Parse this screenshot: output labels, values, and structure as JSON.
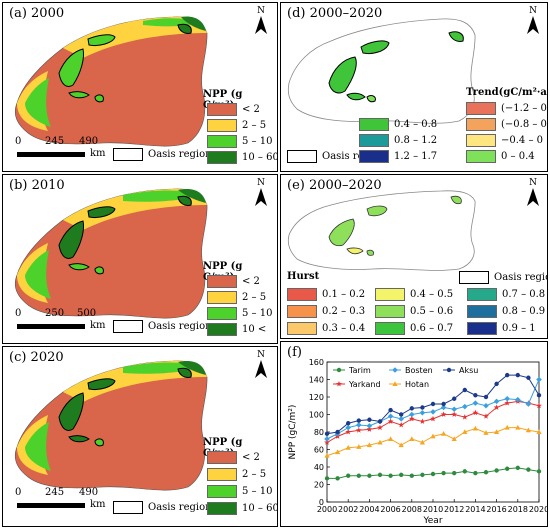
{
  "panel_a": {
    "title": "(a) 2000",
    "north": "N",
    "legend_title": "NPP (g C/m²)",
    "legend": [
      {
        "label": "< 2",
        "color": "#d9654b"
      },
      {
        "label": "2 – 5",
        "color": "#ffd23f"
      },
      {
        "label": "5 – 10",
        "color": "#4cd22a"
      },
      {
        "label": "10 – 60",
        "color": "#1e7b1e"
      }
    ],
    "oasis_label": "Oasis region",
    "scale_ticks": [
      "0",
      "245",
      "490"
    ],
    "scale_unit": "km"
  },
  "panel_b": {
    "title": "(b) 2010",
    "north": "N",
    "legend_title": "NPP (g C/m²)",
    "legend": [
      {
        "label": "< 2",
        "color": "#d9654b"
      },
      {
        "label": "2 – 5",
        "color": "#ffd23f"
      },
      {
        "label": "5 – 10",
        "color": "#4cd22a"
      },
      {
        "label": "10 <",
        "color": "#1e7b1e"
      }
    ],
    "oasis_label": "Oasis region",
    "scale_ticks": [
      "0",
      "250",
      "500"
    ],
    "scale_unit": "km"
  },
  "panel_c": {
    "title": "(c) 2020",
    "north": "N",
    "legend_title": "NPP (g C/m²)",
    "legend": [
      {
        "label": "< 2",
        "color": "#d9654b"
      },
      {
        "label": "2 – 5",
        "color": "#ffd23f"
      },
      {
        "label": "5 – 10",
        "color": "#4cd22a"
      },
      {
        "label": "10 – 60",
        "color": "#1e7b1e"
      }
    ],
    "oasis_label": "Oasis region",
    "scale_ticks": [
      "0",
      "245",
      "490"
    ],
    "scale_unit": "km"
  },
  "panel_d": {
    "title": "(d) 2000–2020",
    "north": "N",
    "legend_title": "Trend(gC/m²·a)",
    "legend": [
      {
        "label": "(−1.2 – 0.8)",
        "color": "#e8735a"
      },
      {
        "label": "(−0.8 – 0.4)",
        "color": "#f4a35c"
      },
      {
        "label": "−0.4 – 0",
        "color": "#ffe680"
      },
      {
        "label": "0 – 0.4",
        "color": "#7fe05a"
      },
      {
        "label": "0.4 – 0.8",
        "color": "#3fc43a"
      },
      {
        "label": "0.8 – 1.2",
        "color": "#1d9b9b"
      },
      {
        "label": "1.2 – 1.7",
        "color": "#1a2f8c"
      }
    ],
    "oasis_label": "Oasis region"
  },
  "panel_e": {
    "title": "(e) 2000–2020",
    "north": "N",
    "legend_title": "Hurst",
    "oasis_label": "Oasis region",
    "legend": [
      {
        "label": "0.1 – 0.2",
        "color": "#e8594a"
      },
      {
        "label": "0.2 – 0.3",
        "color": "#f6924a"
      },
      {
        "label": "0.3 – 0.4",
        "color": "#fcc96a"
      },
      {
        "label": "0.4 – 0.5",
        "color": "#f4f46a"
      },
      {
        "label": "0.5 – 0.6",
        "color": "#8ee05a"
      },
      {
        "label": "0.6 – 0.7",
        "color": "#3cc43c"
      },
      {
        "label": "0.7 – 0.8",
        "color": "#26a88a"
      },
      {
        "label": "0.8 – 0.9",
        "color": "#1f6f9e"
      },
      {
        "label": "0.9 – 1",
        "color": "#1a2f8c"
      }
    ]
  },
  "panel_f": {
    "title": "(f)"
  },
  "chart_data": {
    "type": "line",
    "xlabel": "Year",
    "ylabel": "NPP (gC/m²)",
    "ylim": [
      0,
      160
    ],
    "yticks": [
      0,
      20,
      40,
      60,
      80,
      100,
      120,
      140,
      160
    ],
    "xticks": [
      2000,
      2002,
      2004,
      2006,
      2008,
      2010,
      2012,
      2014,
      2016,
      2018,
      2020
    ],
    "x": [
      2000,
      2001,
      2002,
      2003,
      2004,
      2005,
      2006,
      2007,
      2008,
      2009,
      2010,
      2011,
      2012,
      2013,
      2014,
      2015,
      2016,
      2017,
      2018,
      2019,
      2020
    ],
    "series": [
      {
        "name": "Tarim",
        "color": "#2e8b3e",
        "marker": "circle",
        "values": [
          27,
          27,
          30,
          30,
          30,
          31,
          30,
          31,
          30,
          31,
          32,
          33,
          33,
          35,
          33,
          34,
          36,
          38,
          39,
          37,
          35
        ]
      },
      {
        "name": "Yarkand",
        "color": "#e63232",
        "marker": "star",
        "values": [
          68,
          75,
          80,
          82,
          83,
          85,
          92,
          88,
          95,
          92,
          95,
          100,
          100,
          97,
          102,
          98,
          108,
          113,
          115,
          113,
          110
        ]
      },
      {
        "name": "Bosten",
        "color": "#3aa0e0",
        "marker": "diamond",
        "values": [
          72,
          78,
          85,
          88,
          87,
          92,
          98,
          95,
          100,
          102,
          103,
          108,
          106,
          109,
          113,
          110,
          115,
          118,
          117,
          112,
          140
        ]
      },
      {
        "name": "Hotan",
        "color": "#f5a623",
        "marker": "triangle",
        "values": [
          53,
          57,
          62,
          63,
          65,
          68,
          72,
          65,
          72,
          68,
          75,
          78,
          72,
          80,
          84,
          79,
          80,
          85,
          85,
          82,
          80
        ]
      },
      {
        "name": "Aksu",
        "color": "#1b3a8a",
        "marker": "circle",
        "values": [
          78,
          80,
          90,
          93,
          94,
          92,
          105,
          100,
          107,
          108,
          112,
          112,
          118,
          128,
          122,
          120,
          135,
          145,
          145,
          142,
          122
        ]
      }
    ]
  }
}
